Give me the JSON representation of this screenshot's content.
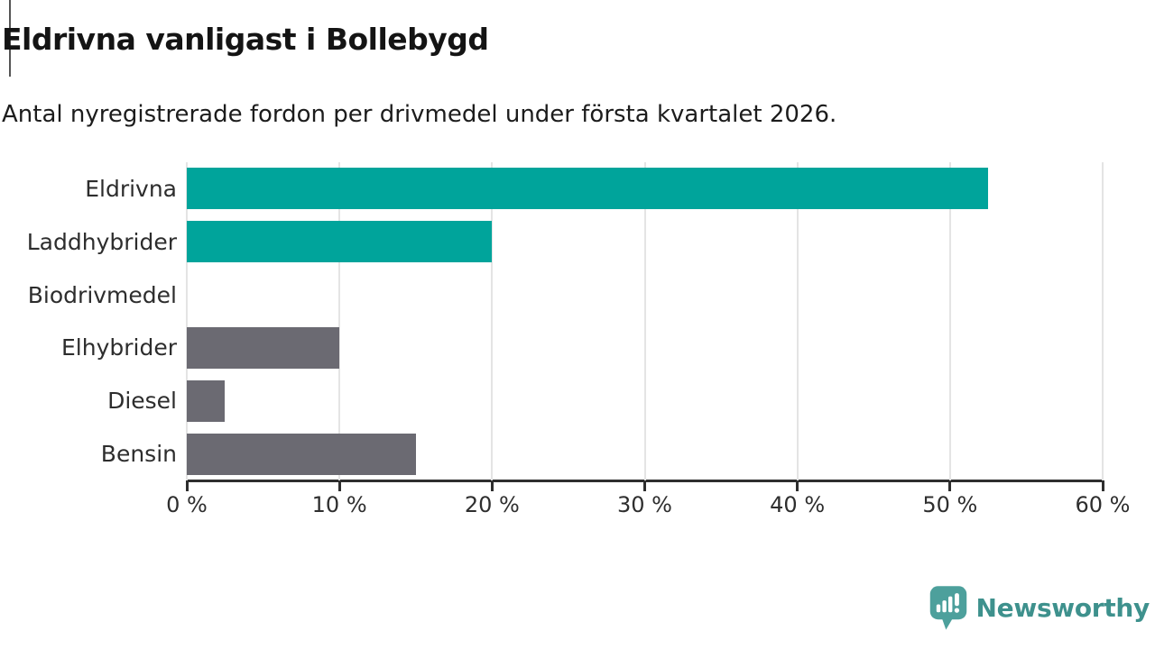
{
  "header": {
    "title": "Eldrivna vanligast i Bollebygd",
    "subtitle": "Antal nyregistrerade fordon per drivmedel under första kvartalet 2026."
  },
  "chart_data": {
    "type": "bar",
    "orientation": "horizontal",
    "title": "Eldrivna vanligast i Bollebygd",
    "subtitle": "Antal nyregistrerade fordon per drivmedel under första kvartalet 2026.",
    "categories": [
      "Eldrivna",
      "Laddhybrider",
      "Biodrivmedel",
      "Elhybrider",
      "Diesel",
      "Bensin"
    ],
    "values": [
      52.5,
      20,
      0,
      10,
      2.5,
      15
    ],
    "unit": "%",
    "xlabel": "",
    "ylabel": "",
    "xlim": [
      0,
      60
    ],
    "xticks": [
      0,
      10,
      20,
      30,
      40,
      50,
      60
    ],
    "tick_label_suffix": " %",
    "grid": true,
    "legend": false,
    "bar_colors": [
      "#00a49b",
      "#00a49b",
      "#6b6a72",
      "#6b6a72",
      "#6b6a72",
      "#6b6a72"
    ]
  },
  "branding": {
    "logo_text": "Newsworthy",
    "logo_icon": "newsworthy-speech-bubble-chart-icon",
    "logo_text_color": "#3e918d",
    "logo_icon_color": "#4da09c"
  },
  "colors": {
    "bar_highlight": "#00a49b",
    "bar_default": "#6b6a72",
    "axis": "#2e2e2e",
    "gridline": "#e4e4e4"
  }
}
